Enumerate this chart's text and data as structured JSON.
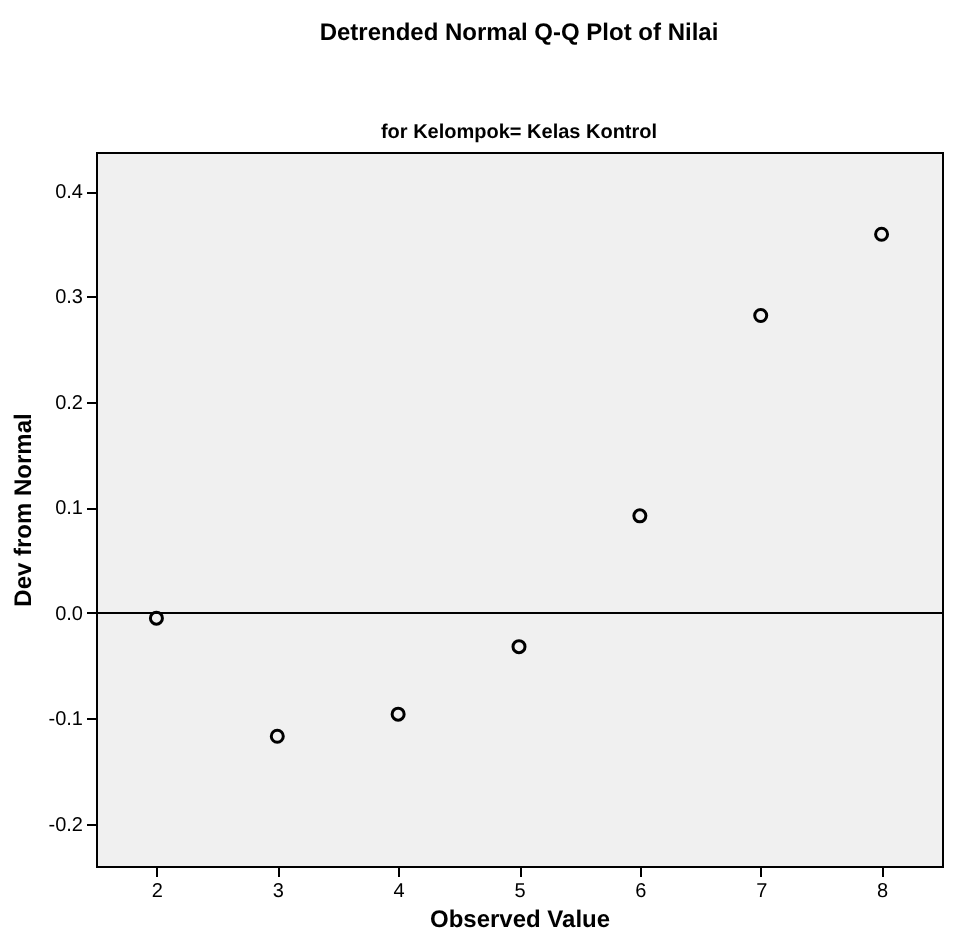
{
  "chart_data": {
    "type": "scatter",
    "title": "Detrended Normal Q-Q Plot of Nilai",
    "subtitle": "for Kelompok= Kelas Kontrol",
    "xlabel": "Observed Value",
    "ylabel": "Dev from Normal",
    "x": [
      2,
      3,
      4,
      5,
      6,
      7,
      8
    ],
    "series": [
      {
        "color": "#000000",
        "values": [
          -0.005,
          -0.117,
          -0.096,
          -0.032,
          0.092,
          0.282,
          0.359
        ]
      }
    ],
    "marker": "circle",
    "grid": false,
    "xlim": [
      1.5,
      8.5
    ],
    "xticks": [
      2,
      3,
      4,
      5,
      6,
      7,
      8
    ],
    "ylim": [
      -0.24,
      0.437
    ],
    "yticks": [
      -0.2,
      -0.1,
      {
        "value": 0,
        "label": "0.0"
      },
      0.1,
      0.2,
      0.3,
      0.4
    ],
    "ref_lines": [
      {
        "axis": "y",
        "value": 0,
        "color": "#000000"
      }
    ]
  }
}
